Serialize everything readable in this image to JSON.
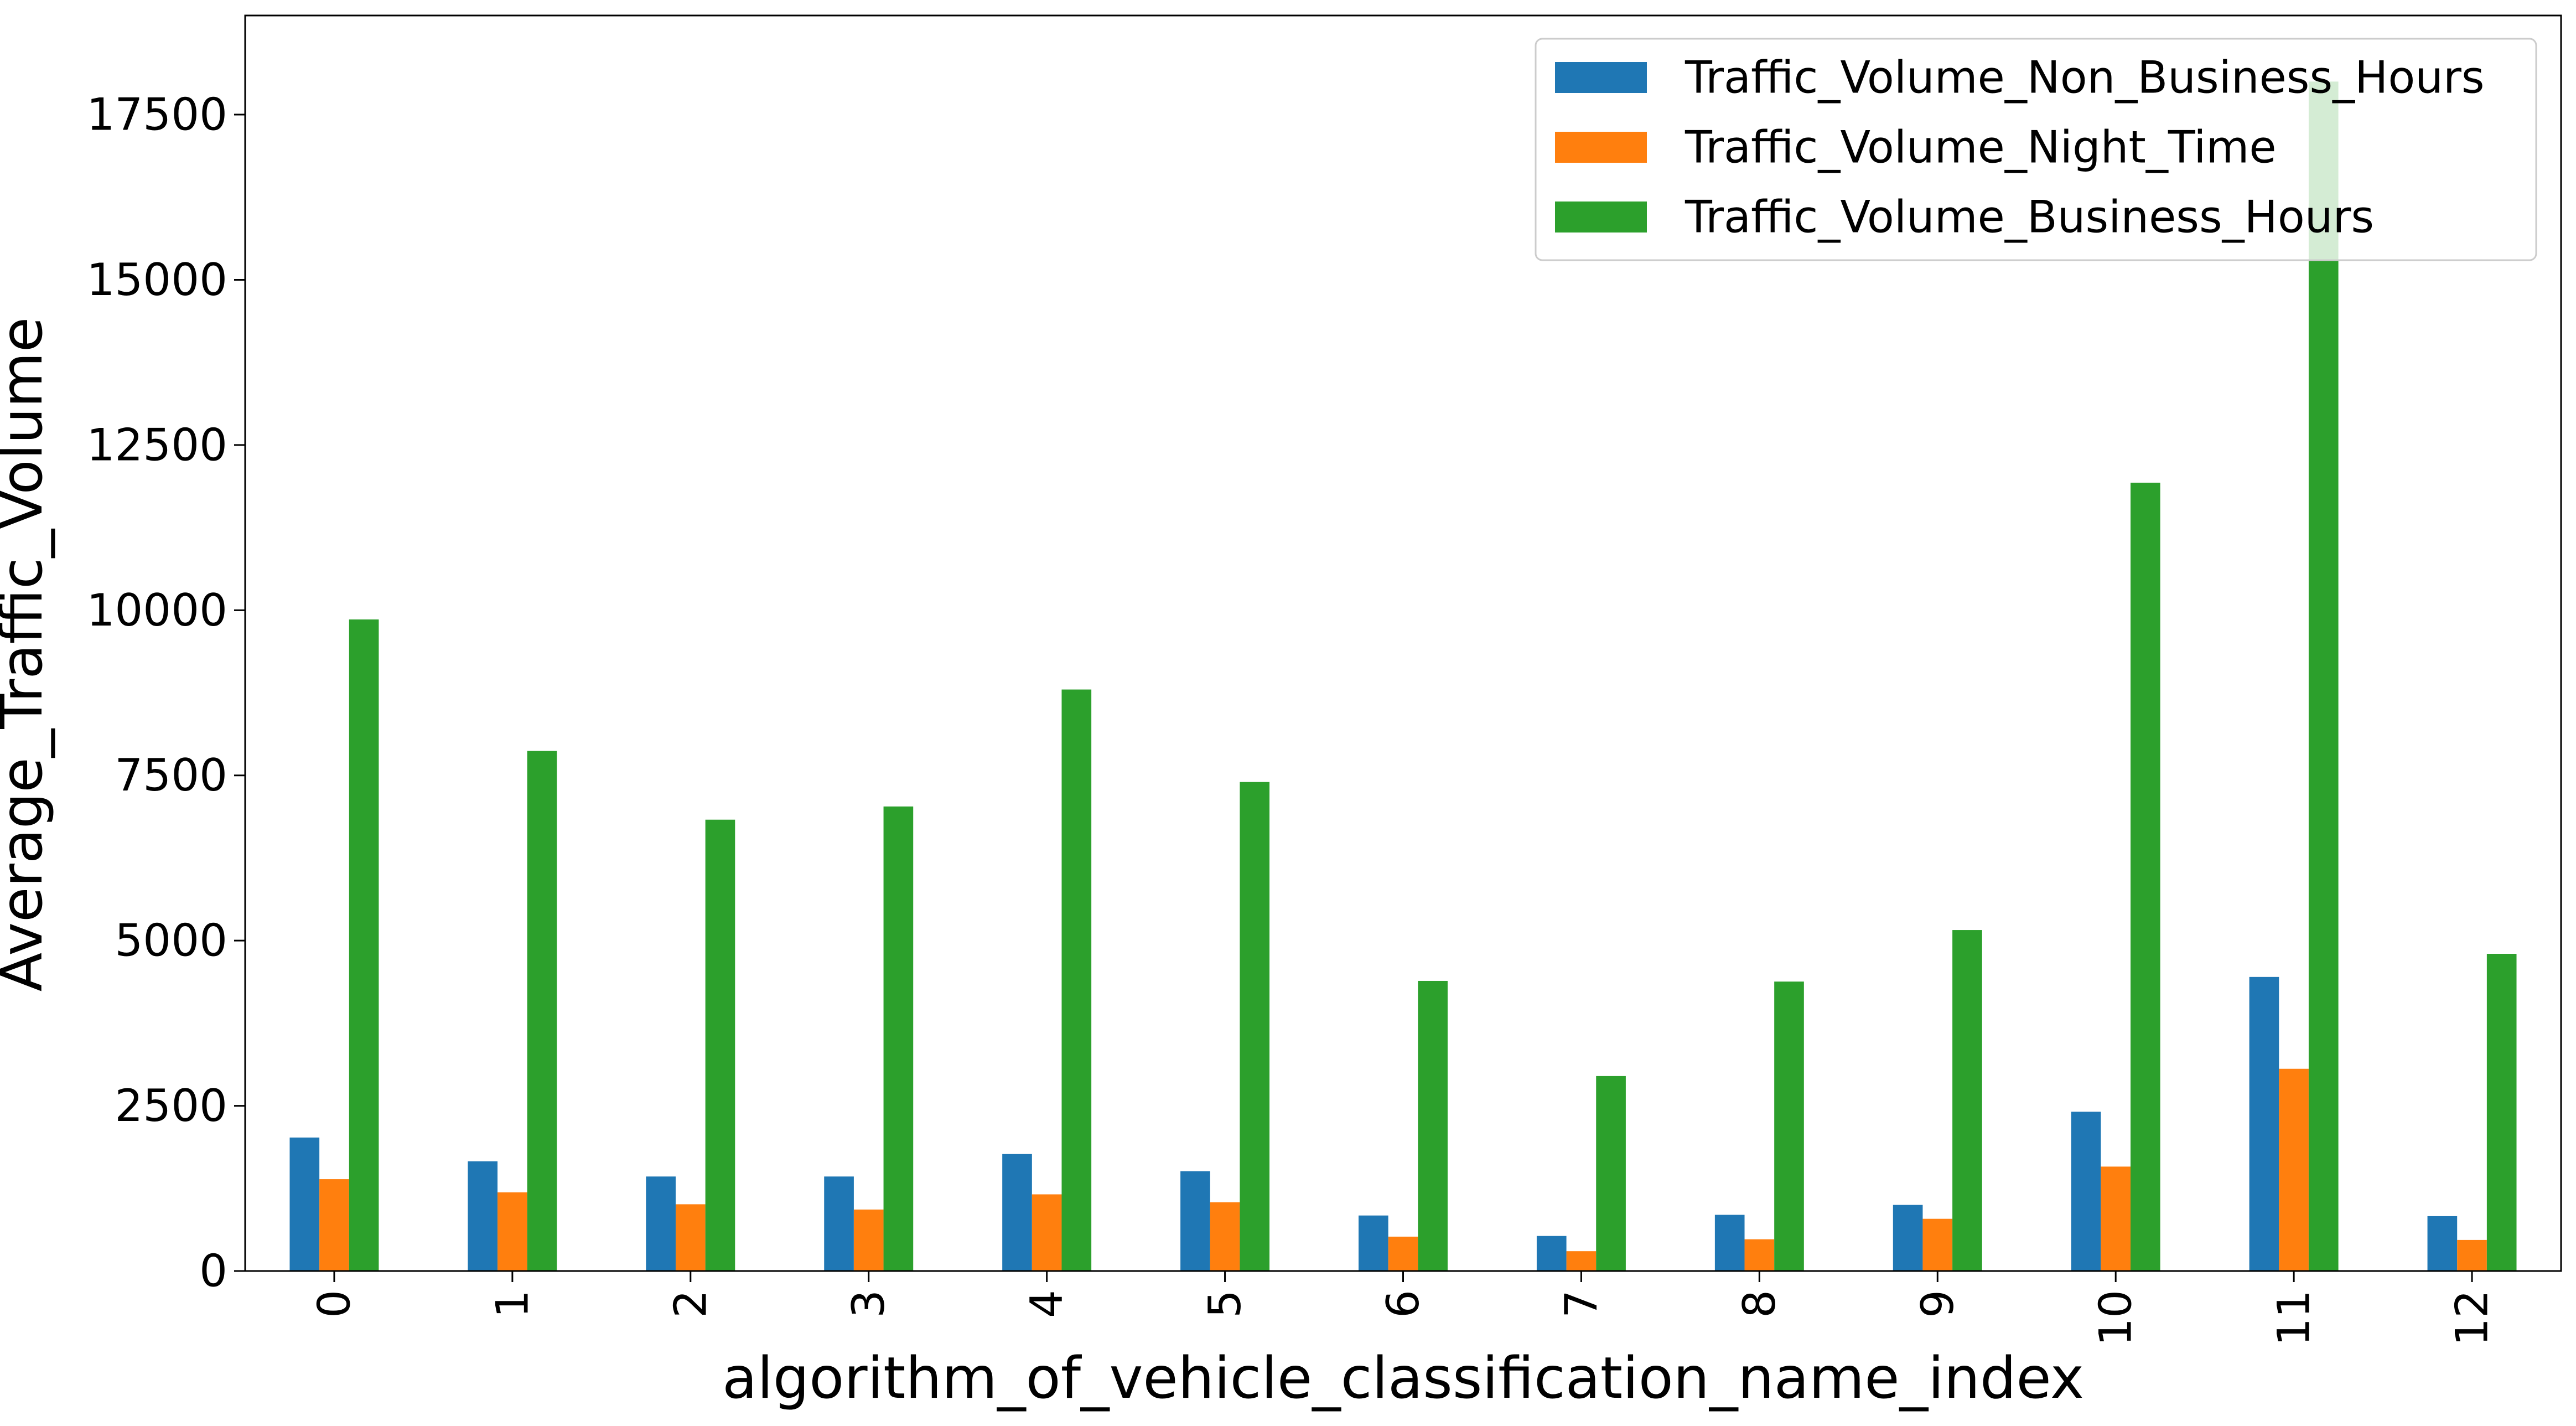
{
  "chart_data": {
    "type": "bar",
    "categories": [
      "0",
      "1",
      "2",
      "3",
      "4",
      "5",
      "6",
      "7",
      "8",
      "9",
      "10",
      "11",
      "12"
    ],
    "series": [
      {
        "name": "Traffic_Volume_Non_Business_Hours",
        "color": "#1f77b4",
        "values": [
          2020,
          1660,
          1430,
          1430,
          1770,
          1510,
          840,
          530,
          850,
          1000,
          2410,
          4450,
          830
        ]
      },
      {
        "name": "Traffic_Volume_Night_Time",
        "color": "#ff7f0e",
        "values": [
          1390,
          1190,
          1010,
          930,
          1160,
          1040,
          520,
          300,
          480,
          790,
          1580,
          3060,
          470
        ]
      },
      {
        "name": "Traffic_Volume_Business_Hours",
        "color": "#2ca02c",
        "values": [
          9860,
          7870,
          6830,
          7030,
          8800,
          7400,
          4390,
          2950,
          4380,
          5160,
          11930,
          18000,
          4800
        ]
      }
    ],
    "title": "",
    "xlabel": "algorithm_of_vehicle_classification_name_index",
    "ylabel": "Average_Traffic_Volume",
    "ylim": [
      0,
      19000
    ],
    "yticks": [
      0,
      2500,
      5000,
      7500,
      10000,
      12500,
      15000,
      17500
    ],
    "ytick_labels": [
      "0",
      "2500",
      "5000",
      "7500",
      "10000",
      "12500",
      "15000",
      "17500"
    ],
    "xtick_rotation": "vertical",
    "grid": false,
    "legend_position": "upper right"
  }
}
